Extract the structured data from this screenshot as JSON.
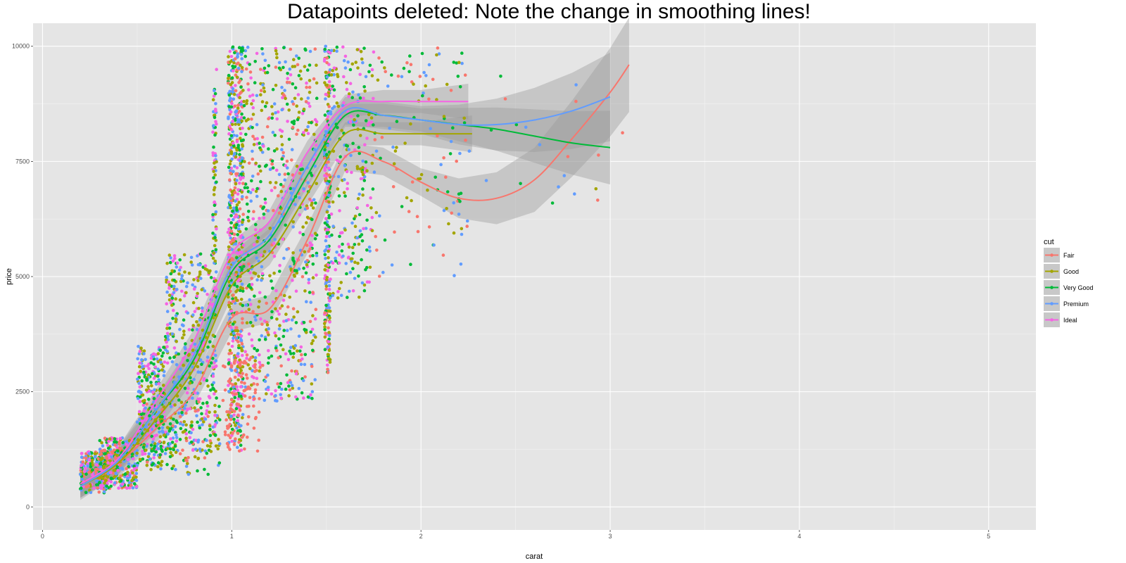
{
  "chart_data": {
    "type": "scatter",
    "title": "Datapoints deleted: Note the change in smoothing lines!",
    "xlabel": "carat",
    "ylabel": "price",
    "xlim": [
      -0.05,
      5.25
    ],
    "ylim": [
      -500,
      10500
    ],
    "x_ticks": [
      0,
      1,
      2,
      3,
      4,
      5
    ],
    "y_ticks": [
      0,
      2500,
      5000,
      7500,
      10000
    ],
    "x_tick_labels": [
      "0",
      "1",
      "2",
      "3",
      "4",
      "5"
    ],
    "y_tick_labels": [
      "0",
      "2500",
      "5000",
      "7500",
      "10000"
    ],
    "grid": true,
    "legend": {
      "title": "cut",
      "position": "right"
    },
    "series": [
      {
        "name": "Fair",
        "color": "#F8766D",
        "smooth_x": [
          0.2,
          0.4,
          0.6,
          0.8,
          1.0,
          1.2,
          1.4,
          1.6,
          1.8,
          2.0,
          2.2,
          2.4,
          2.6,
          2.8,
          3.0,
          3.1
        ],
        "smooth_y": [
          500,
          950,
          1700,
          2500,
          4100,
          4300,
          5800,
          7600,
          7500,
          7050,
          6700,
          6700,
          7100,
          8000,
          9000,
          9600
        ],
        "band": 300
      },
      {
        "name": "Good",
        "color": "#A3A500",
        "smooth_x": [
          0.2,
          0.4,
          0.6,
          0.8,
          1.0,
          1.2,
          1.4,
          1.6,
          1.8,
          2.0,
          2.2,
          2.27
        ],
        "smooth_y": [
          450,
          950,
          1900,
          3000,
          4800,
          5500,
          6800,
          8100,
          8100,
          8100,
          8100,
          8100
        ],
        "band": 250
      },
      {
        "name": "Very Good",
        "color": "#00BA38",
        "smooth_x": [
          0.2,
          0.4,
          0.6,
          0.8,
          1.0,
          1.2,
          1.4,
          1.6,
          1.8,
          2.0,
          2.2,
          2.4,
          2.6,
          2.8,
          3.0
        ],
        "smooth_y": [
          450,
          1000,
          2100,
          3200,
          5100,
          5800,
          7200,
          8500,
          8500,
          8400,
          8300,
          8200,
          8050,
          7900,
          7800
        ],
        "band": 250
      },
      {
        "name": "Premium",
        "color": "#619CFF",
        "smooth_x": [
          0.2,
          0.4,
          0.6,
          0.8,
          1.0,
          1.2,
          1.4,
          1.6,
          1.8,
          2.0,
          2.2,
          2.4,
          2.6,
          2.8,
          3.0
        ],
        "smooth_y": [
          450,
          1000,
          2100,
          3300,
          5200,
          5900,
          7400,
          8600,
          8500,
          8400,
          8300,
          8300,
          8400,
          8600,
          8900
        ],
        "band": 300
      },
      {
        "name": "Ideal",
        "color": "#F564E3",
        "smooth_x": [
          0.2,
          0.4,
          0.6,
          0.8,
          1.0,
          1.2,
          1.4,
          1.6,
          1.8,
          2.0,
          2.2,
          2.25
        ],
        "smooth_y": [
          500,
          1050,
          2300,
          3600,
          5500,
          6200,
          7700,
          8700,
          8800,
          8800,
          8800,
          8800
        ],
        "band": 250
      }
    ],
    "clusters": [
      {
        "series": [
          0,
          1,
          2,
          3,
          4
        ],
        "x": [
          0.2,
          0.35
        ],
        "y": [
          300,
          1200
        ],
        "n": 180
      },
      {
        "series": [
          0,
          1,
          2,
          3,
          4
        ],
        "x": [
          0.3,
          0.5
        ],
        "y": [
          400,
          1500
        ],
        "n": 320
      },
      {
        "series": [
          1,
          2,
          3,
          4
        ],
        "x": [
          0.5,
          0.65
        ],
        "y": [
          900,
          3500
        ],
        "n": 300
      },
      {
        "series": [
          1,
          2,
          3,
          4
        ],
        "x": [
          0.65,
          0.9
        ],
        "y": [
          1200,
          5500
        ],
        "n": 360
      },
      {
        "series": [
          0,
          1,
          2,
          3
        ],
        "x": [
          0.55,
          0.95
        ],
        "y": [
          700,
          2300
        ],
        "n": 120
      },
      {
        "series": [
          1,
          2,
          3,
          4
        ],
        "x": [
          0.9,
          0.92
        ],
        "y": [
          1500,
          9500
        ],
        "n": 120
      },
      {
        "series": [
          0,
          1,
          2,
          3,
          4
        ],
        "x": [
          0.98,
          1.06
        ],
        "y": [
          1200,
          10000
        ],
        "n": 600
      },
      {
        "series": [
          0,
          1,
          2,
          3,
          4
        ],
        "x": [
          1.05,
          1.45
        ],
        "y": [
          2300,
          10000
        ],
        "n": 700
      },
      {
        "series": [
          0
        ],
        "x": [
          0.95,
          1.15
        ],
        "y": [
          1200,
          3200
        ],
        "n": 80
      },
      {
        "series": [
          0,
          1,
          2,
          3,
          4
        ],
        "x": [
          1.49,
          1.52
        ],
        "y": [
          2900,
          10000
        ],
        "n": 260
      },
      {
        "series": [
          1,
          2,
          3,
          4
        ],
        "x": [
          1.52,
          1.75
        ],
        "y": [
          4500,
          10000
        ],
        "n": 240
      },
      {
        "series": [
          0,
          1,
          2,
          3
        ],
        "x": [
          1.75,
          2.25
        ],
        "y": [
          5000,
          10000
        ],
        "n": 120
      },
      {
        "series": [
          0,
          1,
          2,
          3
        ],
        "x": [
          2.25,
          3.1
        ],
        "y": [
          6300,
          9900
        ],
        "n": 20
      }
    ]
  }
}
